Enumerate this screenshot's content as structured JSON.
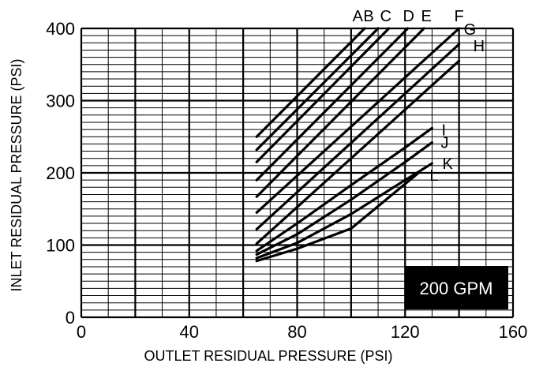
{
  "chart_data": {
    "type": "line",
    "xlabel": "OUTLET RESIDUAL PRESSURE (PSI)",
    "ylabel": "INLET RESIDUAL PRESSURE (PSI)",
    "xlim": [
      0,
      160
    ],
    "ylim": [
      0,
      400
    ],
    "x_ticks": [
      0,
      40,
      80,
      120,
      160
    ],
    "y_ticks": [
      0,
      100,
      200,
      300,
      400
    ],
    "x_ticks_labels": [
      "0",
      "40",
      "80",
      "120",
      "160"
    ],
    "y_ticks_labels": [
      "0",
      "100",
      "200",
      "300",
      "400"
    ],
    "grid": true,
    "annotation": "200 GPM",
    "series": [
      {
        "name": "A",
        "points": [
          [
            65,
            250
          ],
          [
            105,
            400
          ]
        ]
      },
      {
        "name": "B",
        "points": [
          [
            65,
            232
          ],
          [
            110,
            400
          ]
        ]
      },
      {
        "name": "C",
        "points": [
          [
            65,
            215
          ],
          [
            114,
            400
          ]
        ]
      },
      {
        "name": "D",
        "points": [
          [
            65,
            190
          ],
          [
            121,
            400
          ]
        ]
      },
      {
        "name": "E",
        "points": [
          [
            65,
            167
          ],
          [
            127,
            400
          ]
        ]
      },
      {
        "name": "F",
        "points": [
          [
            65,
            145
          ],
          [
            140,
            400
          ]
        ]
      },
      {
        "name": "G",
        "points": [
          [
            65,
            122
          ],
          [
            140,
            378
          ]
        ]
      },
      {
        "name": "H",
        "points": [
          [
            65,
            102
          ],
          [
            140,
            355
          ]
        ]
      },
      {
        "name": "I",
        "points": [
          [
            65,
            92
          ],
          [
            80,
            130
          ],
          [
            100,
            183
          ],
          [
            120,
            235
          ],
          [
            130,
            262
          ]
        ]
      },
      {
        "name": "J",
        "points": [
          [
            65,
            87
          ],
          [
            80,
            115
          ],
          [
            100,
            163
          ],
          [
            120,
            215
          ],
          [
            130,
            242
          ]
        ]
      },
      {
        "name": "K",
        "points": [
          [
            65,
            82
          ],
          [
            80,
            103
          ],
          [
            100,
            143
          ],
          [
            120,
            190
          ],
          [
            130,
            213
          ]
        ]
      },
      {
        "name": "L",
        "points": [
          [
            65,
            78
          ],
          [
            80,
            95
          ],
          [
            100,
            123
          ],
          [
            125,
            200
          ]
        ]
      }
    ]
  }
}
